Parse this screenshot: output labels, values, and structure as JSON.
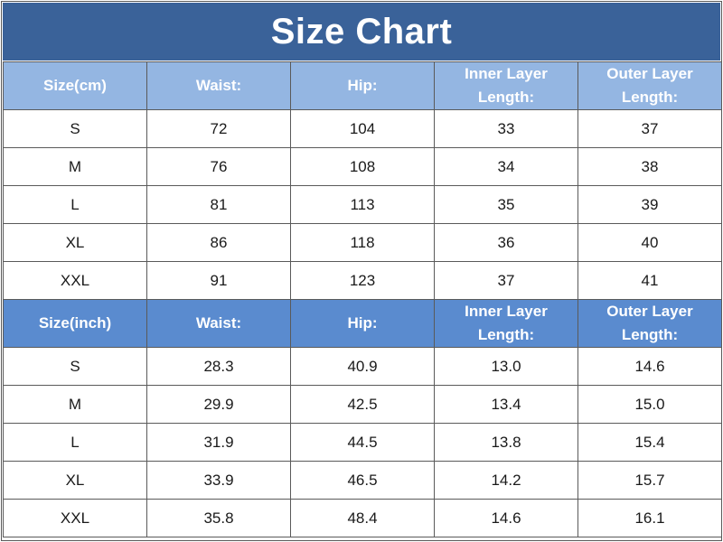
{
  "title": "Size Chart",
  "cm_section": {
    "headers": [
      "Size(cm)",
      "Waist:",
      "Hip:",
      "Inner Layer Length:",
      "Outer Layer Length:"
    ],
    "rows": [
      [
        "S",
        "72",
        "104",
        "33",
        "37"
      ],
      [
        "M",
        "76",
        "108",
        "34",
        "38"
      ],
      [
        "L",
        "81",
        "113",
        "35",
        "39"
      ],
      [
        "XL",
        "86",
        "118",
        "36",
        "40"
      ],
      [
        "XXL",
        "91",
        "123",
        "37",
        "41"
      ]
    ]
  },
  "inch_section": {
    "headers": [
      "Size(inch)",
      "Waist:",
      "Hip:",
      "Inner Layer Length:",
      "Outer Layer Length:"
    ],
    "rows": [
      [
        "S",
        "28.3",
        "40.9",
        "13.0",
        "14.6"
      ],
      [
        "M",
        "29.9",
        "42.5",
        "13.4",
        "15.0"
      ],
      [
        "L",
        "31.9",
        "44.5",
        "13.8",
        "15.4"
      ],
      [
        "XL",
        "33.9",
        "46.5",
        "14.2",
        "15.7"
      ],
      [
        "XXL",
        "35.8",
        "48.4",
        "14.6",
        "16.1"
      ]
    ]
  },
  "colors": {
    "title_bg": "#3a6299",
    "cm_header_bg": "#94b6e2",
    "inch_header_bg": "#5a8bcf",
    "border": "#5a5a5a"
  }
}
